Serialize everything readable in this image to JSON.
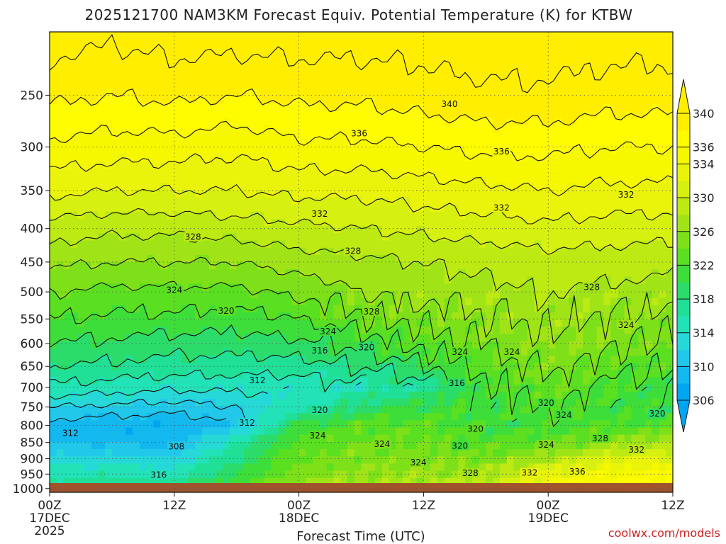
{
  "chart_data": {
    "type": "heatmap",
    "title": "2025121700 NAM3KM Forecast Equiv. Potential Temperature (K) for KTBW",
    "xlabel": "Forecast Time (UTC)",
    "ylabel": "",
    "credit": "coolwx.com/models",
    "x_ticks": [
      {
        "hours": 0,
        "label": "00Z",
        "sub": "17DEC",
        "sub2": "2025"
      },
      {
        "hours": 12,
        "label": "12Z",
        "sub": "",
        "sub2": ""
      },
      {
        "hours": 24,
        "label": "00Z",
        "sub": "18DEC",
        "sub2": ""
      },
      {
        "hours": 36,
        "label": "12Z",
        "sub": "",
        "sub2": ""
      },
      {
        "hours": 48,
        "label": "00Z",
        "sub": "19DEC",
        "sub2": ""
      },
      {
        "hours": 60,
        "label": "12Z",
        "sub": "",
        "sub2": ""
      }
    ],
    "xlim": [
      0,
      60
    ],
    "ylim": [
      1013,
      200
    ],
    "y_ticks": [
      250,
      300,
      350,
      400,
      450,
      500,
      550,
      600,
      650,
      700,
      750,
      800,
      850,
      900,
      950,
      1000
    ],
    "y_unit": "hPa",
    "colorbar_ticks": [
      306,
      310,
      314,
      318,
      322,
      326,
      330,
      334,
      336,
      340
    ],
    "colorbar_levels": [
      306,
      308,
      310,
      312,
      314,
      316,
      318,
      320,
      322,
      324,
      326,
      328,
      330,
      332,
      334,
      336,
      338,
      340
    ],
    "colorbar_colors": [
      "#00a6f2",
      "#12b8ee",
      "#22c8ea",
      "#26d8d8",
      "#22e2b8",
      "#20e098",
      "#2cdc6a",
      "#3ede3a",
      "#5ae020",
      "#7ee018",
      "#a0e418",
      "#bcea12",
      "#d6f010",
      "#eaf40a",
      "#f6f800",
      "#fffb00",
      "#ffee00"
    ],
    "profiles": [
      {
        "hours": 0,
        "theta": {
          "200": 341,
          "250": 338.5,
          "300": 335.5,
          "350": 332.5,
          "400": 329,
          "450": 326.5,
          "500": 324,
          "550": 322,
          "600": 320,
          "650": 318,
          "700": 315.5,
          "750": 312,
          "800": 309,
          "850": 310,
          "900": 313,
          "950": 315,
          "1000": 318
        }
      },
      {
        "hours": 6,
        "theta": {
          "200": 340.5,
          "250": 338,
          "300": 335,
          "350": 332,
          "400": 328.5,
          "450": 326,
          "500": 323.5,
          "550": 321.5,
          "600": 319.5,
          "650": 317.5,
          "700": 315,
          "750": 311.5,
          "800": 308.5,
          "850": 309.5,
          "900": 313,
          "950": 315.5,
          "1000": 318
        }
      },
      {
        "hours": 12,
        "theta": {
          "200": 341,
          "250": 338.5,
          "300": 335,
          "350": 332,
          "400": 328.5,
          "450": 326,
          "500": 323.5,
          "550": 321.5,
          "600": 319,
          "650": 317,
          "700": 314.5,
          "750": 311,
          "800": 308,
          "850": 309,
          "900": 312.5,
          "950": 315,
          "1000": 318
        }
      },
      {
        "hours": 18,
        "theta": {
          "200": 341,
          "250": 338,
          "300": 334.5,
          "350": 332,
          "400": 329,
          "450": 326,
          "500": 323.5,
          "550": 321,
          "600": 319,
          "650": 317,
          "700": 314.5,
          "750": 312,
          "800": 310,
          "850": 316,
          "900": 318,
          "950": 320,
          "1000": 322
        }
      },
      {
        "hours": 24,
        "theta": {
          "200": 341,
          "250": 338.5,
          "300": 335.5,
          "350": 332.5,
          "400": 329.5,
          "450": 327,
          "500": 324.5,
          "550": 322,
          "600": 319.5,
          "650": 317,
          "700": 314.5,
          "750": 315,
          "800": 321,
          "850": 323,
          "900": 324,
          "950": 325,
          "1000": 327
        }
      },
      {
        "hours": 30,
        "theta": {
          "200": 341,
          "250": 338.5,
          "300": 335.5,
          "350": 332.5,
          "400": 330,
          "450": 327.5,
          "500": 326,
          "550": 324,
          "600": 321,
          "650": 318,
          "700": 315,
          "750": 319,
          "800": 323,
          "850": 324,
          "900": 325,
          "950": 326,
          "1000": 328
        }
      },
      {
        "hours": 36,
        "theta": {
          "200": 341,
          "250": 339,
          "300": 336,
          "350": 333,
          "400": 330.5,
          "450": 328,
          "500": 327,
          "550": 325,
          "600": 323,
          "650": 320,
          "700": 317,
          "750": 321,
          "800": 323,
          "850": 324,
          "900": 325,
          "950": 326.5,
          "1000": 328
        }
      },
      {
        "hours": 42,
        "theta": {
          "200": 341.5,
          "250": 339.5,
          "300": 336.5,
          "350": 333.5,
          "400": 331,
          "450": 328.5,
          "500": 327.5,
          "550": 326,
          "600": 324.5,
          "650": 323,
          "700": 321.5,
          "750": 321,
          "800": 321,
          "850": 322.5,
          "900": 325,
          "950": 328,
          "1000": 330
        }
      },
      {
        "hours": 48,
        "theta": {
          "200": 341.5,
          "250": 339.5,
          "300": 336.5,
          "350": 334,
          "400": 331.5,
          "450": 329,
          "500": 328,
          "550": 327,
          "600": 326,
          "650": 325,
          "700": 324,
          "750": 322.5,
          "800": 321.5,
          "850": 323,
          "900": 328,
          "950": 333,
          "1000": 336
        }
      },
      {
        "hours": 54,
        "theta": {
          "200": 341,
          "250": 339,
          "300": 336,
          "350": 333.5,
          "400": 331,
          "450": 329,
          "500": 327.5,
          "550": 326,
          "600": 325,
          "650": 323,
          "700": 321.5,
          "750": 321,
          "800": 322,
          "850": 326,
          "900": 332,
          "950": 335,
          "1000": 337
        }
      },
      {
        "hours": 60,
        "theta": {
          "200": 341,
          "250": 339,
          "300": 336,
          "350": 333.5,
          "400": 331,
          "450": 328.5,
          "500": 327,
          "550": 325.5,
          "600": 324,
          "650": 322.5,
          "700": 321,
          "750": 320.5,
          "800": 322,
          "850": 328,
          "900": 332,
          "950": 336,
          "1000": 339
        }
      }
    ],
    "contour_labels": [
      {
        "hours": 38.5,
        "pres": 258,
        "value": "340"
      },
      {
        "hours": 29.8,
        "pres": 286,
        "value": "336"
      },
      {
        "hours": 43.5,
        "pres": 305,
        "value": "336"
      },
      {
        "hours": 26.0,
        "pres": 380,
        "value": "332"
      },
      {
        "hours": 43.5,
        "pres": 372,
        "value": "332"
      },
      {
        "hours": 55.5,
        "pres": 355,
        "value": "332"
      },
      {
        "hours": 13.8,
        "pres": 412,
        "value": "328"
      },
      {
        "hours": 29.2,
        "pres": 433,
        "value": "328"
      },
      {
        "hours": 31.0,
        "pres": 536,
        "value": "328"
      },
      {
        "hours": 52.2,
        "pres": 492,
        "value": "328"
      },
      {
        "hours": 12.0,
        "pres": 497,
        "value": "324"
      },
      {
        "hours": 26.8,
        "pres": 575,
        "value": "324"
      },
      {
        "hours": 39.5,
        "pres": 618,
        "value": "324"
      },
      {
        "hours": 44.5,
        "pres": 618,
        "value": "324"
      },
      {
        "hours": 55.5,
        "pres": 562,
        "value": "324"
      },
      {
        "hours": 17.0,
        "pres": 535,
        "value": "320"
      },
      {
        "hours": 30.5,
        "pres": 608,
        "value": "320"
      },
      {
        "hours": 26.0,
        "pres": 615,
        "value": "316"
      },
      {
        "hours": 39.2,
        "pres": 690,
        "value": "316"
      },
      {
        "hours": 20.0,
        "pres": 683,
        "value": "312"
      },
      {
        "hours": 2.0,
        "pres": 822,
        "value": "312"
      },
      {
        "hours": 10.5,
        "pres": 953,
        "value": "316"
      },
      {
        "hours": 12.2,
        "pres": 862,
        "value": "308"
      },
      {
        "hours": 19.0,
        "pres": 793,
        "value": "312"
      },
      {
        "hours": 26.0,
        "pres": 758,
        "value": "320"
      },
      {
        "hours": 25.8,
        "pres": 830,
        "value": "324"
      },
      {
        "hours": 32.0,
        "pres": 855,
        "value": "324"
      },
      {
        "hours": 35.5,
        "pres": 912,
        "value": "324"
      },
      {
        "hours": 39.5,
        "pres": 860,
        "value": "320"
      },
      {
        "hours": 41.0,
        "pres": 810,
        "value": "320"
      },
      {
        "hours": 40.5,
        "pres": 947,
        "value": "328"
      },
      {
        "hours": 46.2,
        "pres": 946,
        "value": "332"
      },
      {
        "hours": 47.8,
        "pres": 740,
        "value": "320"
      },
      {
        "hours": 49.5,
        "pres": 772,
        "value": "324"
      },
      {
        "hours": 47.8,
        "pres": 857,
        "value": "324"
      },
      {
        "hours": 53.0,
        "pres": 838,
        "value": "328"
      },
      {
        "hours": 50.8,
        "pres": 942,
        "value": "336"
      },
      {
        "hours": 56.5,
        "pres": 872,
        "value": "332"
      },
      {
        "hours": 58.5,
        "pres": 768,
        "value": "320"
      }
    ]
  }
}
